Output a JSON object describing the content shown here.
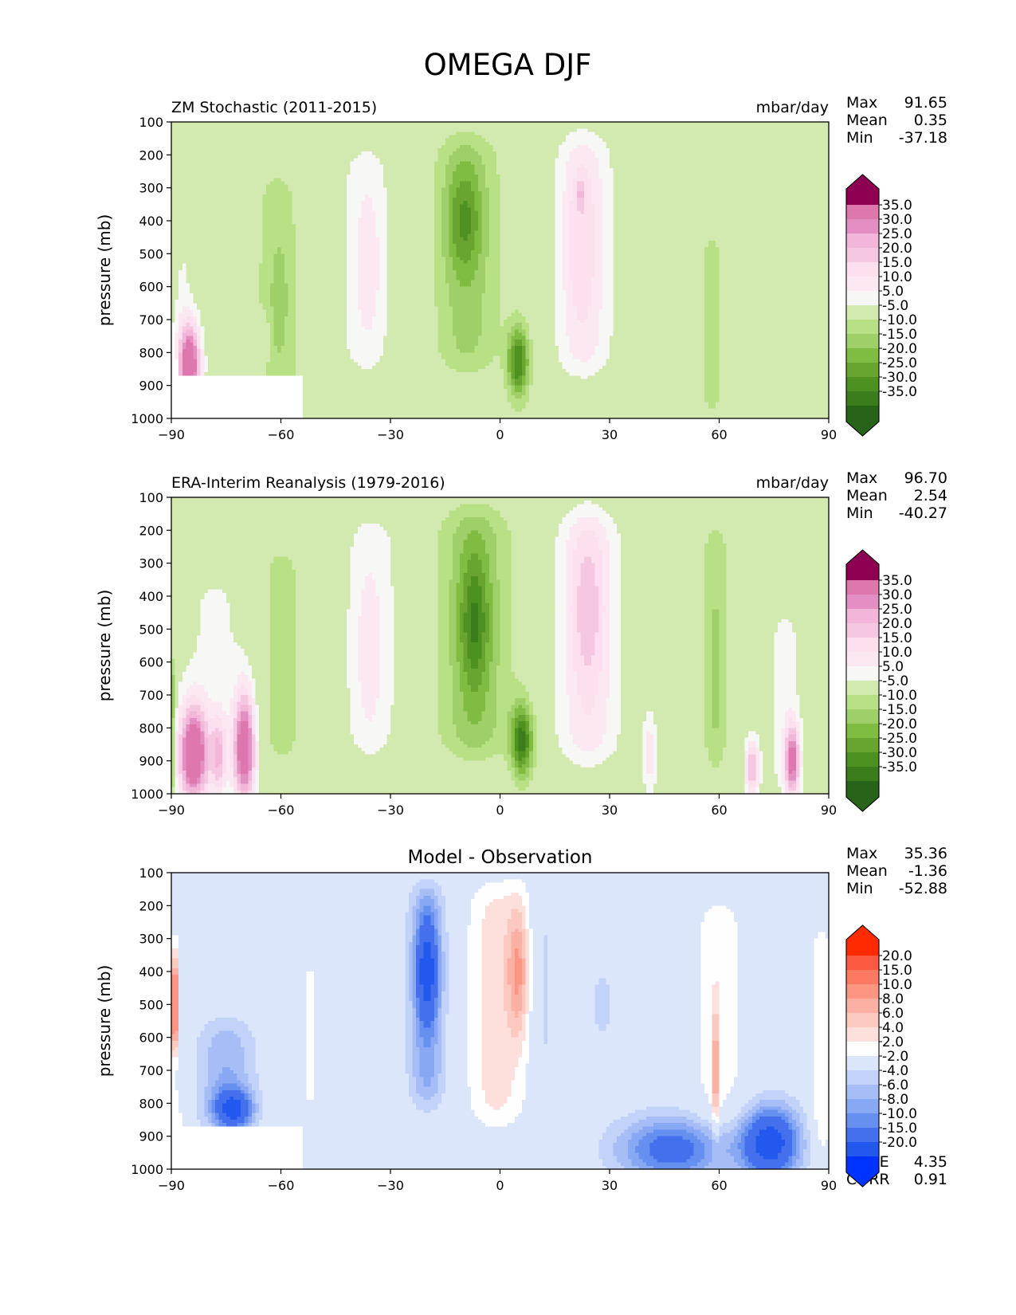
{
  "figure_title": "OMEGA DJF",
  "colors": {
    "omega_neg": [
      "#276419",
      "#3b7c1c",
      "#4d9221",
      "#68a42f",
      "#7fbc41",
      "#9fcf68",
      "#b8e186",
      "#d2eaaf",
      "#e6f5d0",
      "#f1f7e7"
    ],
    "omega_mid": "#f7f7f6",
    "omega_pos": [
      "#fbe8f3",
      "#fde0ef",
      "#f6c7e0",
      "#f1b6da",
      "#e48fc3",
      "#de77ae",
      "#cd4a95",
      "#c51b7d",
      "#8e0152"
    ],
    "diff_neg": [
      "#0033ff",
      "#2258ee",
      "#4470ee",
      "#6690f0",
      "#88a8f4",
      "#a6bdf6",
      "#c3d2f8",
      "#dce6fa"
    ],
    "diff_mid": "#fefefe",
    "diff_pos": [
      "#fde0dc",
      "#fcc9bf",
      "#fcb0a3",
      "#fc9582",
      "#fc7a62",
      "#fb5a40",
      "#f83c1c",
      "#ff2a00"
    ],
    "missing": "#ffffff"
  },
  "chart_data": [
    {
      "type": "heatmap",
      "left_title": "ZM Stochastic (2011-2015)",
      "right_title": "mbar/day",
      "ylabel": "pressure (mb)",
      "xlim": [
        -90,
        90
      ],
      "ylim": [
        1000,
        100
      ],
      "y_reversed": true,
      "xticks": [
        "−90",
        "−60",
        "−30",
        "0",
        "30",
        "60",
        "90"
      ],
      "yticks": [
        "100",
        "200",
        "300",
        "400",
        "500",
        "600",
        "700",
        "800",
        "900",
        "1000"
      ],
      "stats": [
        {
          "label": "Max",
          "value": "91.65"
        },
        {
          "label": "Mean",
          "value": "0.35"
        },
        {
          "label": "Min",
          "value": "-37.18"
        }
      ],
      "colorbar_levels": [
        "35.0",
        "30.0",
        "25.0",
        "20.0",
        "15.0",
        "10.0",
        "5.0",
        "-5.0",
        "-10.0",
        "-15.0",
        "-20.0",
        "-25.0",
        "-30.0",
        "-35.0"
      ],
      "palette": "omega",
      "features": [
        {
          "kind": "plume",
          "lat": -87,
          "hw": 3,
          "p_top": 300,
          "p_bot": 900,
          "amp": 5
        },
        {
          "kind": "plume",
          "lat": -76,
          "hw": 3,
          "p_top": 390,
          "p_bot": 880,
          "amp": 5
        },
        {
          "kind": "cell",
          "lat": -85,
          "hw": 3,
          "p": 840,
          "hp": 130,
          "amp": 45
        },
        {
          "kind": "plume",
          "lat": -61,
          "hw": 6,
          "p_top": 260,
          "p_bot": 1000,
          "amp": -8
        },
        {
          "kind": "cell",
          "lat": -60,
          "hw": 4,
          "p": 640,
          "hp": 200,
          "amp": -4
        },
        {
          "kind": "plume",
          "lat": -37,
          "hw": 8,
          "p_top": 180,
          "p_bot": 860,
          "amp": 7
        },
        {
          "kind": "cell",
          "lat": -36,
          "hw": 4,
          "p": 530,
          "hp": 230,
          "amp": 7
        },
        {
          "kind": "plume",
          "lat": -9,
          "hw": 9,
          "p_top": 150,
          "p_bot": 850,
          "amp": -12
        },
        {
          "kind": "cell",
          "lat": -10,
          "hw": 5,
          "p": 400,
          "hp": 160,
          "amp": -15
        },
        {
          "kind": "cell",
          "lat": 5,
          "hw": 3,
          "p": 830,
          "hp": 110,
          "amp": -30
        },
        {
          "kind": "plume",
          "lat": 23,
          "hw": 8,
          "p_top": 150,
          "p_bot": 860,
          "amp": 12
        },
        {
          "kind": "cell",
          "lat": 22,
          "hw": 5,
          "p": 460,
          "hp": 260,
          "amp": 8
        },
        {
          "kind": "cell",
          "lat": 22,
          "hw": 1,
          "p": 320,
          "hp": 40,
          "amp": 10
        },
        {
          "kind": "plume",
          "lat": 58,
          "hw": 4,
          "p_top": 430,
          "p_bot": 1000,
          "amp": -7
        },
        {
          "kind": "plume",
          "lat": 78,
          "hw": 2,
          "p_top": 580,
          "p_bot": 920,
          "amp": 5
        },
        {
          "kind": "plume",
          "lat": -64,
          "hw": 1,
          "p_top": 680,
          "p_bot": 830,
          "amp": 6
        }
      ],
      "masks": [
        {
          "kind": "rect",
          "lat0": -90,
          "lat1": -54.5,
          "p0": 870,
          "p1": 1000
        },
        {
          "kind": "diag",
          "p0": 660,
          "p1": 870,
          "lat_at_p0": -90,
          "lat_at_p1": -88
        }
      ]
    },
    {
      "type": "heatmap",
      "left_title": "ERA-Interim Reanalysis (1979-2016)",
      "right_title": "mbar/day",
      "ylabel": "pressure (mb)",
      "xlim": [
        -90,
        90
      ],
      "ylim": [
        1000,
        100
      ],
      "y_reversed": true,
      "xticks": [
        "−90",
        "−60",
        "−30",
        "0",
        "30",
        "60",
        "90"
      ],
      "yticks": [
        "100",
        "200",
        "300",
        "400",
        "500",
        "600",
        "700",
        "800",
        "900",
        "1000"
      ],
      "stats": [
        {
          "label": "Max",
          "value": "96.70"
        },
        {
          "label": "Mean",
          "value": "2.54"
        },
        {
          "label": "Min",
          "value": "-40.27"
        }
      ],
      "colorbar_levels": [
        "35.0",
        "30.0",
        "25.0",
        "20.0",
        "15.0",
        "10.0",
        "5.0",
        "-5.0",
        "-10.0",
        "-15.0",
        "-20.0",
        "-25.0",
        "-30.0",
        "-35.0"
      ],
      "palette": "omega",
      "features": [
        {
          "kind": "plume",
          "lat": -78,
          "hw": 10,
          "p_top": 330,
          "p_bot": 1000,
          "amp": 6
        },
        {
          "kind": "cell",
          "lat": -84,
          "hw": 4,
          "p": 880,
          "hp": 150,
          "amp": 45
        },
        {
          "kind": "cell",
          "lat": -70,
          "hw": 3,
          "p": 860,
          "hp": 170,
          "amp": 42
        },
        {
          "kind": "cell",
          "lat": -77,
          "hw": 2,
          "p": 880,
          "hp": 120,
          "amp": 20
        },
        {
          "kind": "plume",
          "lat": -90,
          "hw": 1,
          "p_top": 600,
          "p_bot": 1000,
          "amp": -20
        },
        {
          "kind": "plume",
          "lat": -60,
          "hw": 6,
          "p_top": 260,
          "p_bot": 900,
          "amp": -8
        },
        {
          "kind": "plume",
          "lat": -35,
          "hw": 9,
          "p_top": 160,
          "p_bot": 880,
          "amp": 7
        },
        {
          "kind": "cell",
          "lat": -36,
          "hw": 4,
          "p": 560,
          "hp": 250,
          "amp": 7
        },
        {
          "kind": "plume",
          "lat": -7,
          "hw": 10,
          "p_top": 140,
          "p_bot": 880,
          "amp": -14
        },
        {
          "kind": "cell",
          "lat": -7,
          "hw": 4,
          "p": 480,
          "hp": 200,
          "amp": -18
        },
        {
          "kind": "cell",
          "lat": 6,
          "hw": 3,
          "p": 840,
          "hp": 110,
          "amp": -32
        },
        {
          "kind": "plume",
          "lat": 24,
          "hw": 9,
          "p_top": 150,
          "p_bot": 900,
          "amp": 13
        },
        {
          "kind": "cell",
          "lat": 24,
          "hw": 5,
          "p": 440,
          "hp": 250,
          "amp": 11
        },
        {
          "kind": "plume",
          "lat": 59,
          "hw": 5,
          "p_top": 170,
          "p_bot": 930,
          "amp": -7
        },
        {
          "kind": "cell",
          "lat": 59,
          "hw": 1,
          "p": 620,
          "hp": 200,
          "amp": -9
        },
        {
          "kind": "plume",
          "lat": 78,
          "hw": 5,
          "p_top": 440,
          "p_bot": 1000,
          "amp": 7
        },
        {
          "kind": "cell",
          "lat": 80,
          "hw": 2,
          "p": 900,
          "hp": 110,
          "amp": 35
        },
        {
          "kind": "cell",
          "lat": 69,
          "hw": 2,
          "p": 920,
          "hp": 90,
          "amp": 25
        },
        {
          "kind": "plume",
          "lat": 41,
          "hw": 2,
          "p_top": 760,
          "p_bot": 1000,
          "amp": 12
        }
      ],
      "masks": []
    },
    {
      "type": "heatmap",
      "center_title": "Model - Observation",
      "ylabel": "pressure (mb)",
      "xlim": [
        -90,
        90
      ],
      "ylim": [
        1000,
        100
      ],
      "y_reversed": true,
      "xticks": [
        "−90",
        "−60",
        "−30",
        "0",
        "30",
        "60",
        "90"
      ],
      "yticks": [
        "100",
        "200",
        "300",
        "400",
        "500",
        "600",
        "700",
        "800",
        "900",
        "1000"
      ],
      "stats": [
        {
          "label": "Max",
          "value": "35.36"
        },
        {
          "label": "Mean",
          "value": "-1.36"
        },
        {
          "label": "Min",
          "value": "-52.88"
        }
      ],
      "bottom_stats": [
        {
          "label": "RMSE",
          "value": "4.35"
        },
        {
          "label": "CORR",
          "value": "0.91"
        }
      ],
      "colorbar_levels": [
        "20.0",
        "15.0",
        "10.0",
        "8.0",
        "6.0",
        "4.0",
        "2.0",
        "-2.0",
        "-4.0",
        "-6.0",
        "-8.0",
        "-10.0",
        "-15.0",
        "-20.0"
      ],
      "palette": "diff",
      "features": [
        {
          "kind": "cell",
          "lat": -89,
          "hw": 1,
          "p": 500,
          "hp": 150,
          "amp": 18
        },
        {
          "kind": "plume",
          "lat": -75,
          "hw": 8,
          "p_top": 560,
          "p_bot": 870,
          "amp": -6
        },
        {
          "kind": "cell",
          "lat": -73,
          "hw": 5,
          "p": 820,
          "hp": 60,
          "amp": -14
        },
        {
          "kind": "plume",
          "lat": -52,
          "hw": 2,
          "p_top": 350,
          "p_bot": 840,
          "amp": 2.5
        },
        {
          "kind": "plume",
          "lat": -20,
          "hw": 5,
          "p_top": 150,
          "p_bot": 800,
          "amp": -7
        },
        {
          "kind": "cell",
          "lat": -20,
          "hw": 3,
          "p": 400,
          "hp": 150,
          "amp": -12
        },
        {
          "kind": "plume",
          "lat": -1,
          "hw": 8,
          "p_top": 140,
          "p_bot": 860,
          "amp": 5
        },
        {
          "kind": "cell",
          "lat": 5,
          "hw": 3,
          "p": 400,
          "hp": 200,
          "amp": 8
        },
        {
          "kind": "plume",
          "lat": 12,
          "hw": 3,
          "p_top": 200,
          "p_bot": 700,
          "amp": -2.5
        },
        {
          "kind": "plume",
          "lat": 28,
          "hw": 4,
          "p_top": 400,
          "p_bot": 600,
          "amp": -3
        },
        {
          "kind": "plume",
          "lat": 60,
          "hw": 8,
          "p_top": 180,
          "p_bot": 880,
          "amp": 3
        },
        {
          "kind": "cell",
          "lat": 59,
          "hw": 1,
          "p": 700,
          "hp": 200,
          "amp": 8
        },
        {
          "kind": "plume",
          "lat": 88,
          "hw": 3,
          "p_top": 280,
          "p_bot": 950,
          "amp": 4
        },
        {
          "kind": "cell",
          "lat": 47,
          "hw": 15,
          "p": 940,
          "hp": 100,
          "amp": -12
        },
        {
          "kind": "cell",
          "lat": 74,
          "hw": 8,
          "p": 920,
          "hp": 110,
          "amp": -18
        }
      ],
      "masks": [
        {
          "kind": "rect",
          "lat0": -90,
          "lat1": -54.5,
          "p0": 870,
          "p1": 1000
        },
        {
          "kind": "diag",
          "p0": 650,
          "p1": 870,
          "lat_at_p0": -90,
          "lat_at_p1": -87
        }
      ]
    }
  ]
}
